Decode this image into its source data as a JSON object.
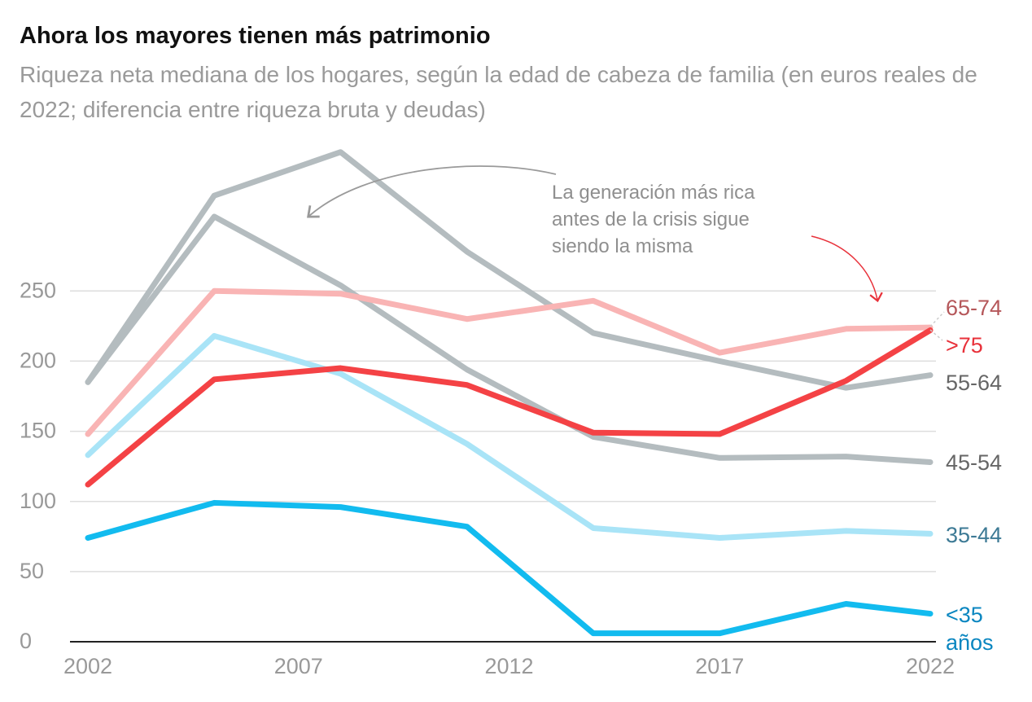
{
  "chart_data": {
    "type": "line",
    "title": "Ahora los mayores tienen más patrimonio",
    "subtitle": "Riqueza neta mediana de los hogares, según la edad de cabeza de familia (en euros reales de 2022; diferencia entre riqueza bruta y deudas)",
    "annotation": "La generación más rica antes de la crisis sigue siendo la misma",
    "x": [
      2002,
      2005,
      2008,
      2011,
      2014,
      2017,
      2020,
      2022
    ],
    "xlim": [
      2002,
      2022
    ],
    "xticks": [
      2002,
      2007,
      2012,
      2017,
      2022
    ],
    "ylim": [
      0,
      350
    ],
    "yticks": [
      0,
      50,
      100,
      150,
      200,
      250
    ],
    "grid": true,
    "series": [
      {
        "name": "55-64",
        "color": "#b4bcbf",
        "label_color": "#666666",
        "values": [
          185,
          318,
          349,
          278,
          220,
          200,
          181,
          190
        ]
      },
      {
        "name": "45-54",
        "color": "#b4bcbf",
        "label_color": "#666666",
        "values": [
          185,
          303,
          254,
          194,
          146,
          131,
          132,
          128
        ]
      },
      {
        "name": "65-74",
        "color": "#f9b4b4",
        "label_color": "#b5575a",
        "values": [
          148,
          250,
          248,
          230,
          243,
          206,
          223,
          224
        ]
      },
      {
        "name": "35-44",
        "color": "#a9e4f7",
        "label_color": "#3d7a95",
        "values": [
          133,
          218,
          191,
          141,
          81,
          74,
          79,
          77
        ]
      },
      {
        "name": ">75",
        "color": "#f44245",
        "label_color": "#e8313a",
        "values": [
          112,
          187,
          195,
          183,
          149,
          148,
          186,
          222
        ]
      },
      {
        "name": "<35 años",
        "color": "#12bbef",
        "label_color": "#0a86c0",
        "values": [
          74,
          99,
          96,
          82,
          6,
          6,
          27,
          20
        ]
      }
    ]
  }
}
